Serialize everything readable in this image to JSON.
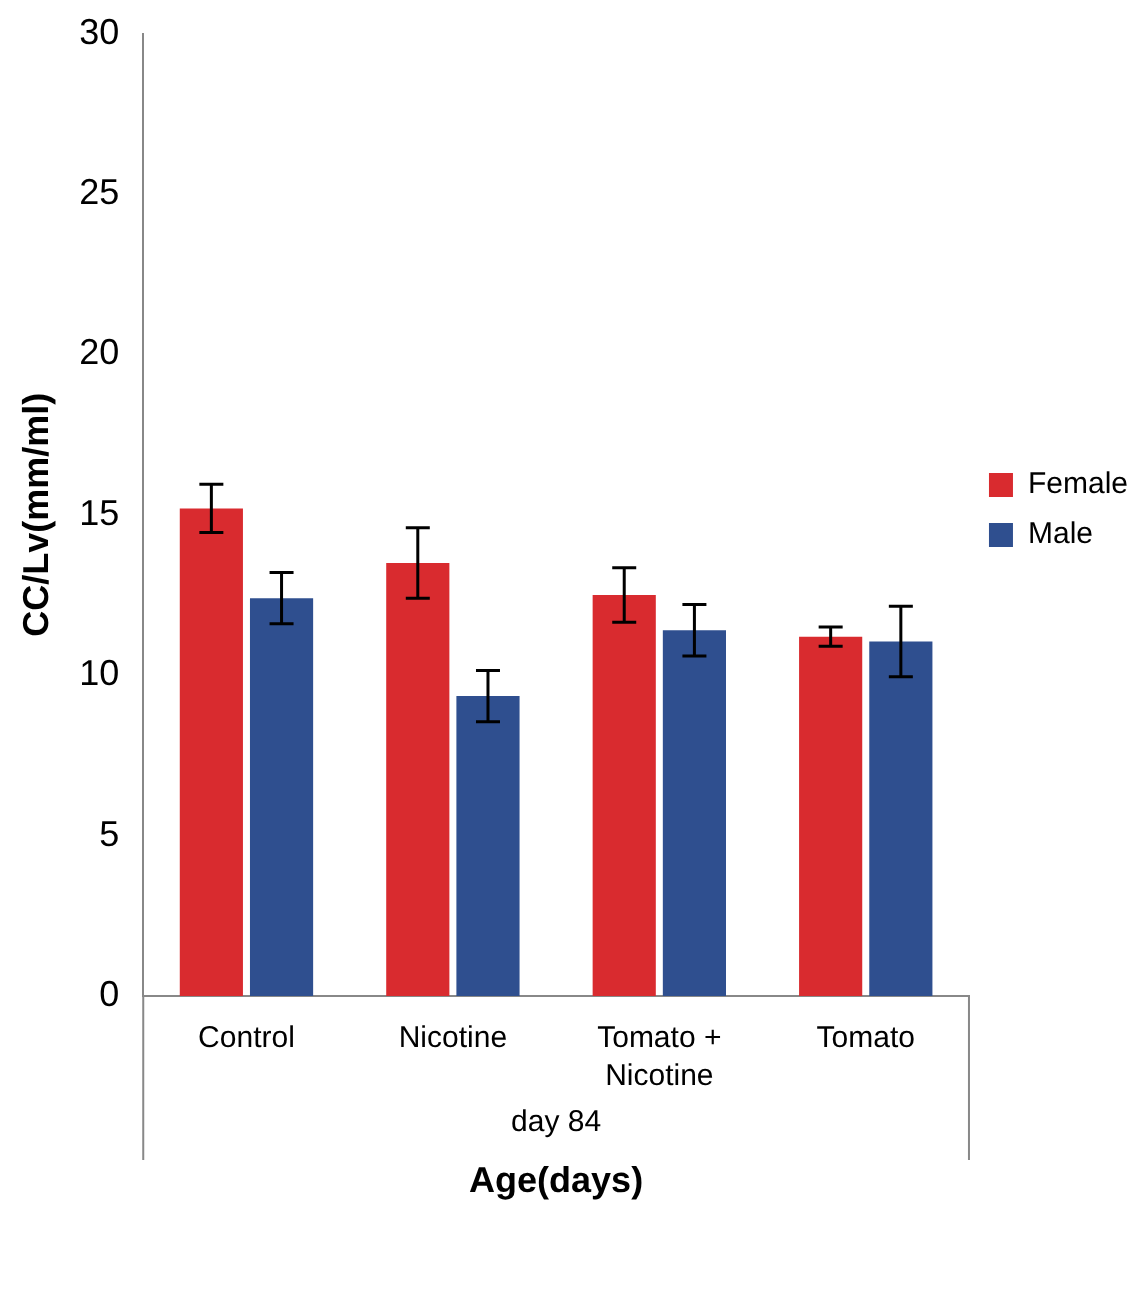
{
  "chart_data": {
    "type": "bar",
    "xlabel": "Age(days)",
    "ylabel": "CC/Lv(mm/ml)",
    "categories": [
      "Control",
      "Nicotine",
      "Tomato + Nicotine",
      "Tomato"
    ],
    "series": [
      {
        "name": "Female",
        "color": "#d92b2f",
        "values": [
          15.2,
          13.5,
          12.5,
          11.2
        ],
        "errors": [
          0.75,
          1.1,
          0.85,
          0.3
        ]
      },
      {
        "name": "Male",
        "color": "#2f4f8f",
        "values": [
          12.4,
          9.35,
          11.4,
          11.05
        ],
        "errors": [
          0.8,
          0.8,
          0.8,
          1.1
        ]
      }
    ],
    "annotations": [
      "day 84"
    ],
    "ylim": [
      0,
      30
    ],
    "yticks": [
      0,
      5,
      10,
      15,
      20,
      25,
      30
    ],
    "grid": false,
    "legend": "right"
  }
}
